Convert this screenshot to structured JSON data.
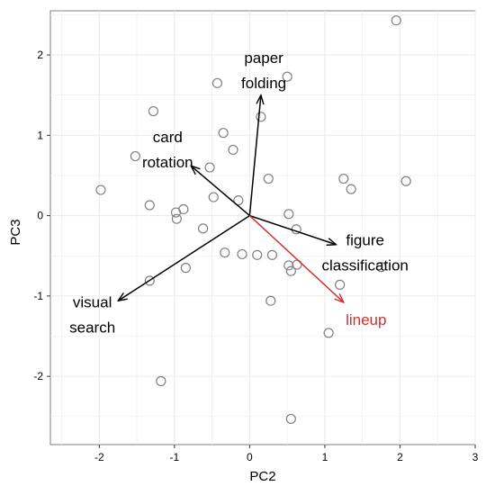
{
  "chart_data": {
    "type": "scatter",
    "title": "",
    "xlabel": "PC2",
    "ylabel": "PC3",
    "xlim": [
      -2.65,
      3.0
    ],
    "ylim": [
      -2.85,
      2.55
    ],
    "xticks": [
      -2,
      -1,
      0,
      1,
      2,
      3
    ],
    "yticks": [
      -2,
      -1,
      0,
      1,
      2
    ],
    "grid": true,
    "colors": {
      "panel": "#ffffff",
      "grid": "#ebebeb",
      "points": "#808080",
      "vector": "#000000",
      "highlight": "#d03030"
    },
    "points": [
      [
        1.95,
        2.43
      ],
      [
        0.5,
        1.73
      ],
      [
        -0.43,
        1.65
      ],
      [
        -1.28,
        1.3
      ],
      [
        0.15,
        1.23
      ],
      [
        -0.35,
        1.03
      ],
      [
        -0.22,
        0.82
      ],
      [
        -1.52,
        0.74
      ],
      [
        -0.53,
        0.6
      ],
      [
        0.25,
        0.46
      ],
      [
        1.25,
        0.46
      ],
      [
        2.08,
        0.43
      ],
      [
        1.35,
        0.33
      ],
      [
        -1.98,
        0.32
      ],
      [
        -0.48,
        0.23
      ],
      [
        -0.15,
        0.19
      ],
      [
        -1.33,
        0.13
      ],
      [
        -0.88,
        0.08
      ],
      [
        -0.98,
        0.04
      ],
      [
        0.52,
        0.02
      ],
      [
        -0.97,
        -0.04
      ],
      [
        -0.62,
        -0.16
      ],
      [
        0.62,
        -0.17
      ],
      [
        -0.33,
        -0.46
      ],
      [
        -0.1,
        -0.48
      ],
      [
        0.1,
        -0.49
      ],
      [
        0.3,
        -0.49
      ],
      [
        -0.85,
        -0.65
      ],
      [
        0.52,
        -0.62
      ],
      [
        0.55,
        -0.69
      ],
      [
        0.63,
        -0.61
      ],
      [
        1.75,
        -0.64
      ],
      [
        -1.33,
        -0.81
      ],
      [
        1.2,
        -0.86
      ],
      [
        0.28,
        -1.06
      ],
      [
        1.05,
        -1.46
      ],
      [
        -1.18,
        -2.06
      ],
      [
        0.55,
        -2.53
      ]
    ],
    "vectors": [
      {
        "label_lines": [
          "paper",
          "folding"
        ],
        "x": 0.15,
        "y": 1.5,
        "highlight": false
      },
      {
        "label_lines": [
          "card",
          "rotation"
        ],
        "x": -0.78,
        "y": 0.62,
        "highlight": false
      },
      {
        "label_lines": [
          "figure",
          "classification"
        ],
        "x": 1.15,
        "y": -0.36,
        "highlight": false
      },
      {
        "label_lines": [
          "visual",
          "search"
        ],
        "x": -1.75,
        "y": -1.06,
        "highlight": false
      },
      {
        "label_lines": [
          "lineup"
        ],
        "x": 1.25,
        "y": -1.08,
        "highlight": true
      }
    ]
  }
}
